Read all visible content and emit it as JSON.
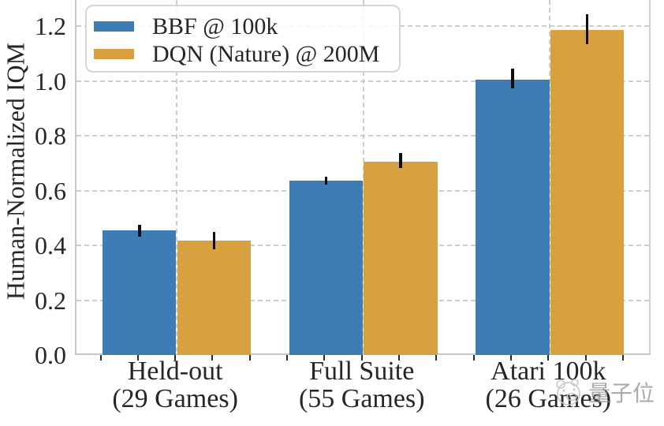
{
  "chart_data": {
    "type": "bar",
    "title": "",
    "xlabel": "",
    "ylabel": "Human-Normalized IQM",
    "ylim": [
      0,
      1.295
    ],
    "yticks": [
      0,
      0.2,
      0.4,
      0.6,
      0.8,
      1.0,
      1.2
    ],
    "grid": {
      "horizontal": true,
      "vertical": true,
      "style": "dashed"
    },
    "legend_position": "upper left",
    "categories": [
      {
        "line1": "Held-out",
        "line2": "(29 Games)"
      },
      {
        "line1": "Full Suite",
        "line2": "(55 Games)"
      },
      {
        "line1": "Atari 100k",
        "line2": "(26 Games)"
      }
    ],
    "series": [
      {
        "name": "BBF @ 100k",
        "color": "#3d7cb5",
        "values": [
          0.455,
          0.635,
          1.005
        ],
        "err_low": [
          0.433,
          0.621,
          0.972
        ],
        "err_high": [
          0.475,
          0.651,
          1.045
        ]
      },
      {
        "name": "DQN (Nature) @ 200M",
        "color": "#d9a03f",
        "values": [
          0.417,
          0.705,
          1.185
        ],
        "err_low": [
          0.386,
          0.681,
          1.134
        ],
        "err_high": [
          0.449,
          0.737,
          1.243
        ]
      }
    ],
    "error_bar_color": "#0e0e0e"
  },
  "watermark": {
    "text": "量子位",
    "logo": "qbitai-mascot"
  },
  "style": {
    "spine_color": "#c8c8c8",
    "grid_color": "#cdcdcd",
    "tick_color": "#2b2b2b",
    "text_color": "#262626"
  }
}
